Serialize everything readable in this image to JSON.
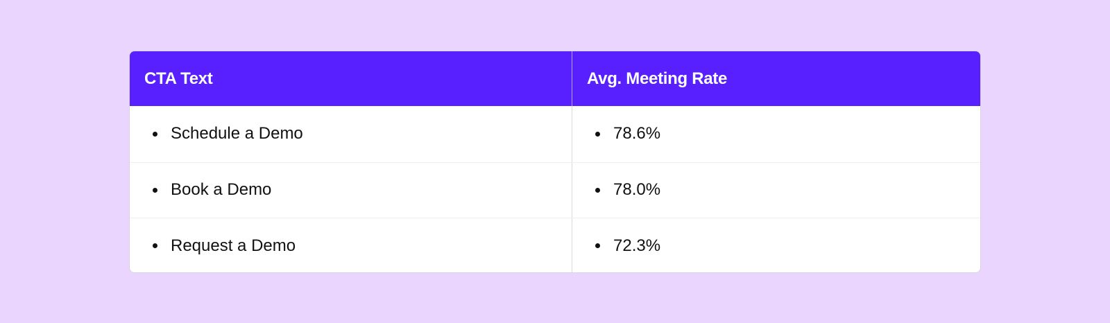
{
  "table": {
    "headers": {
      "cta_text": "CTA Text",
      "avg_meeting_rate": "Avg. Meeting Rate"
    },
    "rows": [
      {
        "cta": "Schedule a Demo",
        "rate": "78.6%"
      },
      {
        "cta": "Book a Demo",
        "rate": "78.0%"
      },
      {
        "cta": "Request a Demo",
        "rate": "72.3%"
      }
    ]
  },
  "colors": {
    "background": "#e9d5fd",
    "header": "#5820ff",
    "header_text": "#ffffff",
    "body_text": "#111111"
  }
}
